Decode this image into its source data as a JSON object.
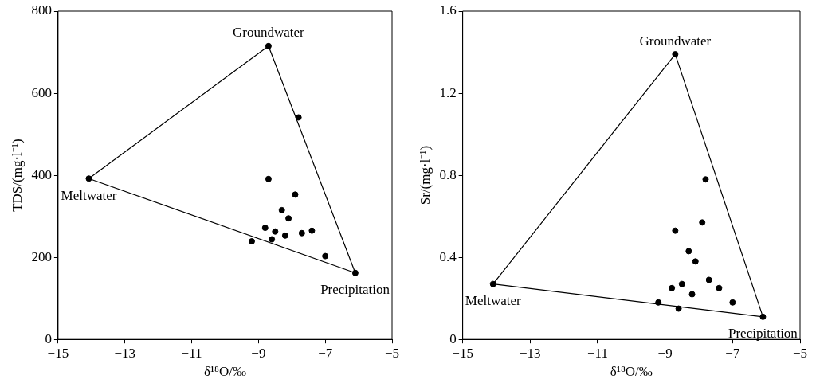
{
  "chart_data": [
    {
      "type": "scatter",
      "xlabel": "δ¹⁸O/‰",
      "ylabel": "TDS/(mg·l⁻¹)",
      "xlim": [
        -15,
        -5
      ],
      "xticks": [
        -15,
        -13,
        -11,
        -9,
        -7,
        -5
      ],
      "ylim": [
        0,
        800
      ],
      "yticks": [
        0,
        200,
        400,
        600,
        800
      ],
      "grid": false,
      "legend": false,
      "marker": "circle",
      "annotations": [
        {
          "text": "Groundwater",
          "x": -8.7,
          "y": 715
        },
        {
          "text": "Meltwater",
          "x": -14.08,
          "y": 392
        },
        {
          "text": "Precipitation",
          "x": -6.1,
          "y": 162
        }
      ],
      "series": [
        {
          "type": "line",
          "color": "#000000",
          "marker": "none",
          "x": [
            -14.08,
            -8.7,
            -6.1
          ],
          "values": [
            392,
            715,
            162
          ]
        },
        {
          "type": "line",
          "color": "#000000",
          "marker": "none",
          "x": [
            -14.08,
            -6.1
          ],
          "values": [
            392,
            162
          ]
        },
        {
          "type": "scatter",
          "color": "#000000",
          "x": [
            -14.08,
            -8.7,
            -6.1
          ],
          "values": [
            392,
            715,
            162
          ]
        },
        {
          "type": "scatter",
          "color": "#000000",
          "x": [
            -7.8,
            -8.7,
            -7.9,
            -8.3,
            -8.1,
            -8.8,
            -8.5,
            -8.2,
            -7.7,
            -7.4,
            -9.2,
            -8.6,
            -7.0
          ],
          "values": [
            541,
            391,
            353,
            315,
            295,
            272,
            263,
            253,
            259,
            265,
            239,
            244,
            203
          ]
        }
      ]
    },
    {
      "type": "scatter",
      "xlabel": "δ¹⁸O/‰",
      "ylabel": "Sr/(mg·l⁻¹)",
      "xlim": [
        -15,
        -5
      ],
      "xticks": [
        -15,
        -13,
        -11,
        -9,
        -7,
        -5
      ],
      "ylim": [
        0,
        1.6
      ],
      "yticks": [
        0,
        0.4,
        0.8,
        1.2,
        1.6
      ],
      "grid": false,
      "legend": false,
      "marker": "circle",
      "annotations": [
        {
          "text": "Groundwater",
          "x": -8.7,
          "y": 1.39
        },
        {
          "text": "Meltwater",
          "x": -14.1,
          "y": 0.27
        },
        {
          "text": "Precipitation",
          "x": -6.1,
          "y": 0.11
        }
      ],
      "series": [
        {
          "type": "line",
          "color": "#000000",
          "marker": "none",
          "x": [
            -14.1,
            -8.7,
            -6.1
          ],
          "values": [
            0.27,
            1.39,
            0.11
          ]
        },
        {
          "type": "line",
          "color": "#000000",
          "marker": "none",
          "x": [
            -14.1,
            -6.1
          ],
          "values": [
            0.27,
            0.11
          ]
        },
        {
          "type": "scatter",
          "color": "#000000",
          "x": [
            -14.1,
            -8.7,
            -6.1
          ],
          "values": [
            0.27,
            1.39,
            0.11
          ]
        },
        {
          "type": "scatter",
          "color": "#000000",
          "x": [
            -7.8,
            -7.9,
            -8.7,
            -8.3,
            -8.1,
            -7.7,
            -8.5,
            -8.8,
            -7.4,
            -8.2,
            -9.2,
            -7.0,
            -8.6
          ],
          "values": [
            0.78,
            0.57,
            0.53,
            0.43,
            0.38,
            0.29,
            0.27,
            0.25,
            0.25,
            0.22,
            0.18,
            0.18,
            0.15
          ]
        }
      ]
    }
  ]
}
